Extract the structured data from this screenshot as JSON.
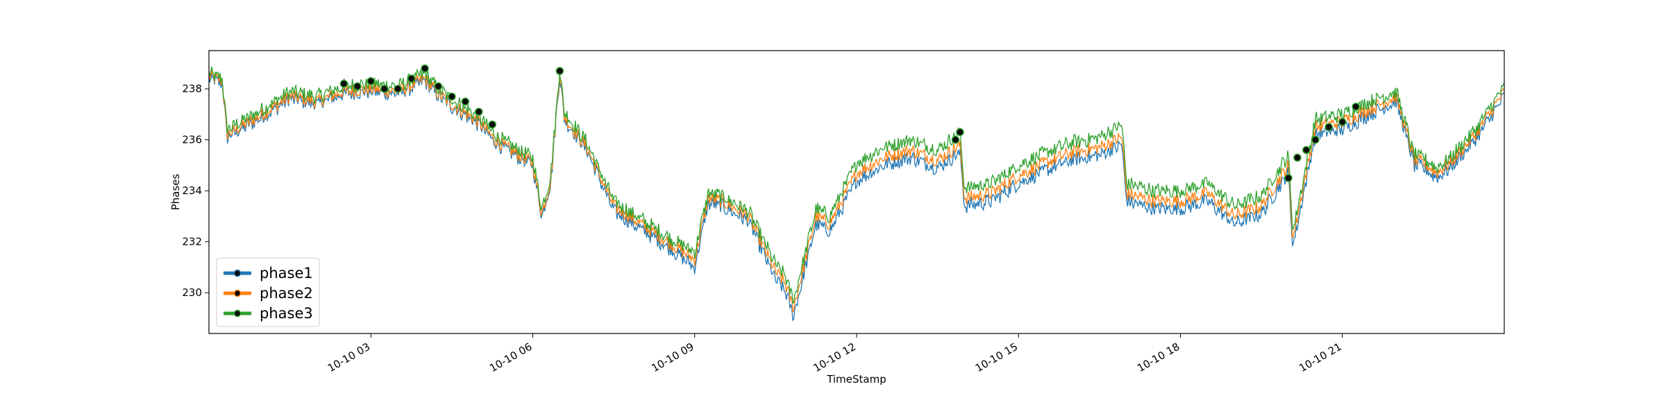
{
  "chart_data": {
    "type": "line",
    "title": "",
    "xlabel": "TimeStamp",
    "ylabel": "Phases",
    "x_range": [
      "2023-10-10 00:00",
      "2023-10-11 00:00"
    ],
    "ylim": [
      228.4,
      239.5
    ],
    "x_ticks": [
      {
        "label": "10-10 03",
        "value": "2023-10-10 03:00"
      },
      {
        "label": "10-10 06",
        "value": "2023-10-10 06:00"
      },
      {
        "label": "10-10 09",
        "value": "2023-10-10 09:00"
      },
      {
        "label": "10-10 12",
        "value": "2023-10-10 12:00"
      },
      {
        "label": "10-10 15",
        "value": "2023-10-10 15:00"
      },
      {
        "label": "10-10 18",
        "value": "2023-10-10 18:00"
      },
      {
        "label": "10-10 21",
        "value": "2023-10-10 21:00"
      }
    ],
    "y_ticks": [
      230,
      232,
      234,
      236,
      238
    ],
    "grid": false,
    "legend_position": "lower-left",
    "x": [
      "00:00",
      "00:15",
      "00:20",
      "00:30",
      "01:00",
      "01:30",
      "02:00",
      "02:30",
      "03:00",
      "03:30",
      "04:00",
      "04:15",
      "04:30",
      "05:00",
      "05:15",
      "05:30",
      "06:00",
      "06:10",
      "06:20",
      "06:30",
      "06:35",
      "07:00",
      "07:30",
      "08:00",
      "08:30",
      "09:00",
      "09:15",
      "09:30",
      "10:00",
      "10:30",
      "10:40",
      "10:50",
      "11:15",
      "11:25",
      "11:30",
      "12:00",
      "12:30",
      "13:00",
      "13:30",
      "13:55",
      "14:00",
      "14:30",
      "15:00",
      "15:30",
      "16:00",
      "16:30",
      "16:55",
      "17:00",
      "17:30",
      "18:00",
      "18:30",
      "19:00",
      "19:30",
      "20:00",
      "20:05",
      "20:30",
      "21:00",
      "21:30",
      "22:00",
      "22:20",
      "22:30",
      "22:45",
      "23:00",
      "23:30",
      "24:00"
    ],
    "series": [
      {
        "name": "phase1",
        "color": "#1f77b4",
        "values": [
          238.4,
          238.2,
          236.1,
          236.3,
          236.9,
          237.6,
          237.4,
          237.8,
          237.9,
          237.8,
          238.3,
          237.7,
          237.3,
          236.6,
          236.0,
          235.6,
          235.0,
          233.0,
          234.3,
          238.6,
          236.8,
          235.6,
          233.2,
          232.5,
          231.8,
          231.0,
          233.5,
          233.4,
          232.8,
          230.5,
          230.1,
          229.1,
          232.7,
          232.5,
          232.4,
          234.4,
          235.0,
          235.3,
          234.9,
          235.5,
          233.4,
          233.6,
          234.3,
          234.8,
          235.2,
          235.4,
          235.8,
          233.6,
          233.3,
          233.3,
          233.6,
          232.7,
          233.1,
          234.7,
          231.8,
          236.2,
          236.4,
          237.0,
          237.5,
          235.0,
          234.9,
          234.5,
          234.9,
          236.1,
          237.7
        ]
      },
      {
        "name": "phase2",
        "color": "#ff7f0e",
        "values": [
          238.5,
          238.3,
          236.2,
          236.4,
          237.0,
          237.7,
          237.5,
          237.9,
          238.0,
          237.9,
          238.4,
          237.8,
          237.4,
          236.7,
          236.1,
          235.7,
          235.1,
          233.1,
          234.4,
          238.7,
          236.9,
          235.7,
          233.4,
          232.7,
          232.0,
          231.3,
          233.7,
          233.6,
          233.0,
          230.8,
          230.4,
          229.4,
          233.0,
          232.8,
          232.7,
          234.7,
          235.3,
          235.6,
          235.2,
          235.8,
          233.7,
          233.9,
          234.6,
          235.1,
          235.5,
          235.7,
          236.1,
          233.9,
          233.6,
          233.6,
          233.9,
          233.0,
          233.4,
          235.0,
          232.1,
          236.5,
          236.7,
          237.2,
          237.7,
          235.2,
          235.1,
          234.7,
          235.1,
          236.3,
          237.9
        ]
      },
      {
        "name": "phase3",
        "color": "#2ca02c",
        "values": [
          238.6,
          238.4,
          236.4,
          236.6,
          237.2,
          237.9,
          237.7,
          238.1,
          238.2,
          238.1,
          238.6,
          238.0,
          237.6,
          236.9,
          236.3,
          235.9,
          235.3,
          233.3,
          234.6,
          238.8,
          237.1,
          235.9,
          233.6,
          232.9,
          232.2,
          231.6,
          233.9,
          233.8,
          233.2,
          231.1,
          230.7,
          229.7,
          233.3,
          233.1,
          233.0,
          235.1,
          235.7,
          236.0,
          235.6,
          236.3,
          234.1,
          234.3,
          235.0,
          235.5,
          235.9,
          236.1,
          236.6,
          234.3,
          234.0,
          234.0,
          234.3,
          233.4,
          233.8,
          235.4,
          232.4,
          236.8,
          237.0,
          237.5,
          237.9,
          235.4,
          235.3,
          234.9,
          235.3,
          236.5,
          238.1
        ]
      }
    ],
    "marker_color": "#0a0a0a",
    "highlighted_x": [
      "02:30",
      "02:45",
      "03:00",
      "03:15",
      "03:30",
      "03:45",
      "04:00",
      "04:15",
      "04:30",
      "04:45",
      "05:00",
      "05:15",
      "06:30",
      "13:50",
      "13:55",
      "20:00",
      "20:10",
      "20:20",
      "20:30",
      "20:45",
      "21:00",
      "21:15"
    ],
    "highlighted_values": [
      238.2,
      238.1,
      238.3,
      238.0,
      238.0,
      238.4,
      238.8,
      238.1,
      237.7,
      237.5,
      237.1,
      236.6,
      238.7,
      236.0,
      236.3,
      234.5,
      235.3,
      235.6,
      236.0,
      236.5,
      236.7,
      237.3
    ]
  }
}
